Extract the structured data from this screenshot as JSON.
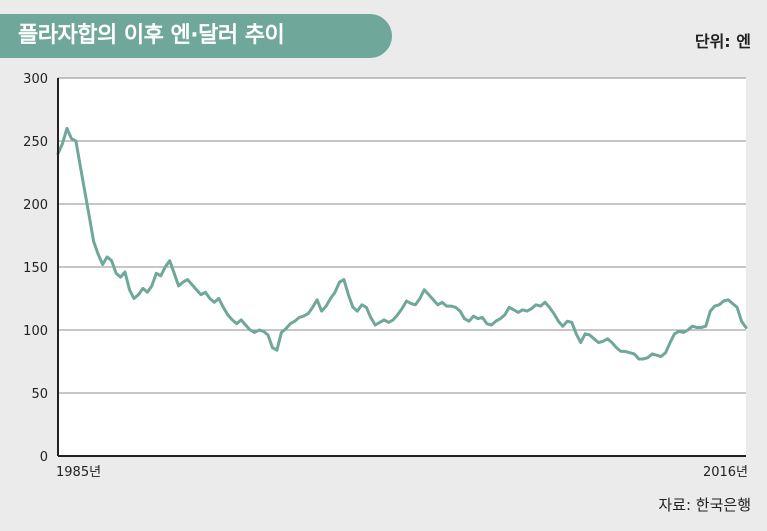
{
  "header": {
    "title": "플라자합의 이후 엔·달러 추이",
    "unit_label": "단위: 엔"
  },
  "footer": {
    "source": "자료: 한국은행"
  },
  "colors": {
    "tab": "#6fa79a",
    "line": "#6fa79a",
    "plot_bg": "#ffffff",
    "grid": "#8c8c8c",
    "axis": "#222222"
  },
  "chart_data": {
    "type": "line",
    "title": "플라자합의 이후 엔·달러 추이",
    "ylabel": "",
    "xlabel": "",
    "ylim": [
      0,
      300
    ],
    "xlim": [
      1985.6,
      2016.4
    ],
    "y_ticks": [
      "0",
      "50",
      "100",
      "150",
      "200",
      "250",
      "300"
    ],
    "x_tick_labels": [
      {
        "x": 1985.6,
        "label": "1985년"
      },
      {
        "x": 2016.4,
        "label": "2016년"
      }
    ],
    "grid": true,
    "series": [
      {
        "values": [
          [
            1985.6,
            240
          ],
          [
            1985.8,
            248
          ],
          [
            1986.0,
            260
          ],
          [
            1986.2,
            252
          ],
          [
            1986.4,
            250
          ],
          [
            1986.6,
            230
          ],
          [
            1986.8,
            210
          ],
          [
            1987.0,
            190
          ],
          [
            1987.2,
            170
          ],
          [
            1987.4,
            160
          ],
          [
            1987.6,
            152
          ],
          [
            1987.8,
            158
          ],
          [
            1988.0,
            155
          ],
          [
            1988.2,
            145
          ],
          [
            1988.4,
            142
          ],
          [
            1988.6,
            146
          ],
          [
            1988.8,
            132
          ],
          [
            1989.0,
            125
          ],
          [
            1989.2,
            128
          ],
          [
            1989.4,
            133
          ],
          [
            1989.6,
            130
          ],
          [
            1989.8,
            135
          ],
          [
            1990.0,
            145
          ],
          [
            1990.2,
            143
          ],
          [
            1990.4,
            150
          ],
          [
            1990.6,
            155
          ],
          [
            1990.8,
            145
          ],
          [
            1991.0,
            135
          ],
          [
            1991.2,
            138
          ],
          [
            1991.4,
            140
          ],
          [
            1991.6,
            136
          ],
          [
            1991.8,
            132
          ],
          [
            1992.0,
            128
          ],
          [
            1992.2,
            130
          ],
          [
            1992.4,
            125
          ],
          [
            1992.6,
            122
          ],
          [
            1992.8,
            125
          ],
          [
            1993.0,
            118
          ],
          [
            1993.2,
            112
          ],
          [
            1993.4,
            108
          ],
          [
            1993.6,
            105
          ],
          [
            1993.8,
            108
          ],
          [
            1994.0,
            104
          ],
          [
            1994.2,
            100
          ],
          [
            1994.4,
            98
          ],
          [
            1994.6,
            100
          ],
          [
            1994.8,
            99
          ],
          [
            1995.0,
            96
          ],
          [
            1995.2,
            86
          ],
          [
            1995.4,
            84
          ],
          [
            1995.6,
            98
          ],
          [
            1995.8,
            101
          ],
          [
            1996.0,
            105
          ],
          [
            1996.2,
            107
          ],
          [
            1996.4,
            110
          ],
          [
            1996.6,
            111
          ],
          [
            1996.8,
            113
          ],
          [
            1997.0,
            118
          ],
          [
            1997.2,
            124
          ],
          [
            1997.4,
            115
          ],
          [
            1997.6,
            119
          ],
          [
            1997.8,
            125
          ],
          [
            1998.0,
            130
          ],
          [
            1998.2,
            138
          ],
          [
            1998.4,
            140
          ],
          [
            1998.6,
            128
          ],
          [
            1998.8,
            118
          ],
          [
            1999.0,
            115
          ],
          [
            1999.2,
            120
          ],
          [
            1999.4,
            118
          ],
          [
            1999.6,
            110
          ],
          [
            1999.8,
            104
          ],
          [
            2000.0,
            106
          ],
          [
            2000.2,
            108
          ],
          [
            2000.4,
            106
          ],
          [
            2000.6,
            108
          ],
          [
            2000.8,
            112
          ],
          [
            2001.0,
            117
          ],
          [
            2001.2,
            123
          ],
          [
            2001.4,
            121
          ],
          [
            2001.6,
            120
          ],
          [
            2001.8,
            125
          ],
          [
            2002.0,
            132
          ],
          [
            2002.2,
            128
          ],
          [
            2002.4,
            124
          ],
          [
            2002.6,
            120
          ],
          [
            2002.8,
            122
          ],
          [
            2003.0,
            119
          ],
          [
            2003.2,
            119
          ],
          [
            2003.4,
            118
          ],
          [
            2003.6,
            115
          ],
          [
            2003.8,
            109
          ],
          [
            2004.0,
            107
          ],
          [
            2004.2,
            111
          ],
          [
            2004.4,
            109
          ],
          [
            2004.6,
            110
          ],
          [
            2004.8,
            105
          ],
          [
            2005.0,
            104
          ],
          [
            2005.2,
            107
          ],
          [
            2005.4,
            109
          ],
          [
            2005.6,
            112
          ],
          [
            2005.8,
            118
          ],
          [
            2006.0,
            116
          ],
          [
            2006.2,
            114
          ],
          [
            2006.4,
            116
          ],
          [
            2006.6,
            115
          ],
          [
            2006.8,
            117
          ],
          [
            2007.0,
            120
          ],
          [
            2007.2,
            119
          ],
          [
            2007.4,
            122
          ],
          [
            2007.6,
            118
          ],
          [
            2007.8,
            113
          ],
          [
            2008.0,
            107
          ],
          [
            2008.2,
            103
          ],
          [
            2008.4,
            107
          ],
          [
            2008.6,
            106
          ],
          [
            2008.8,
            97
          ],
          [
            2009.0,
            90
          ],
          [
            2009.2,
            97
          ],
          [
            2009.4,
            96
          ],
          [
            2009.6,
            93
          ],
          [
            2009.8,
            90
          ],
          [
            2010.0,
            91
          ],
          [
            2010.2,
            93
          ],
          [
            2010.4,
            90
          ],
          [
            2010.6,
            86
          ],
          [
            2010.8,
            83
          ],
          [
            2011.0,
            83
          ],
          [
            2011.2,
            82
          ],
          [
            2011.4,
            81
          ],
          [
            2011.6,
            77
          ],
          [
            2011.8,
            77
          ],
          [
            2012.0,
            78
          ],
          [
            2012.2,
            81
          ],
          [
            2012.4,
            80
          ],
          [
            2012.6,
            79
          ],
          [
            2012.8,
            82
          ],
          [
            2013.0,
            90
          ],
          [
            2013.2,
            97
          ],
          [
            2013.4,
            99
          ],
          [
            2013.6,
            98
          ],
          [
            2013.8,
            100
          ],
          [
            2014.0,
            103
          ],
          [
            2014.2,
            102
          ],
          [
            2014.4,
            102
          ],
          [
            2014.6,
            103
          ],
          [
            2014.8,
            115
          ],
          [
            2015.0,
            119
          ],
          [
            2015.2,
            120
          ],
          [
            2015.4,
            123
          ],
          [
            2015.6,
            124
          ],
          [
            2015.8,
            121
          ],
          [
            2016.0,
            118
          ],
          [
            2016.2,
            107
          ],
          [
            2016.4,
            102
          ]
        ]
      }
    ]
  }
}
